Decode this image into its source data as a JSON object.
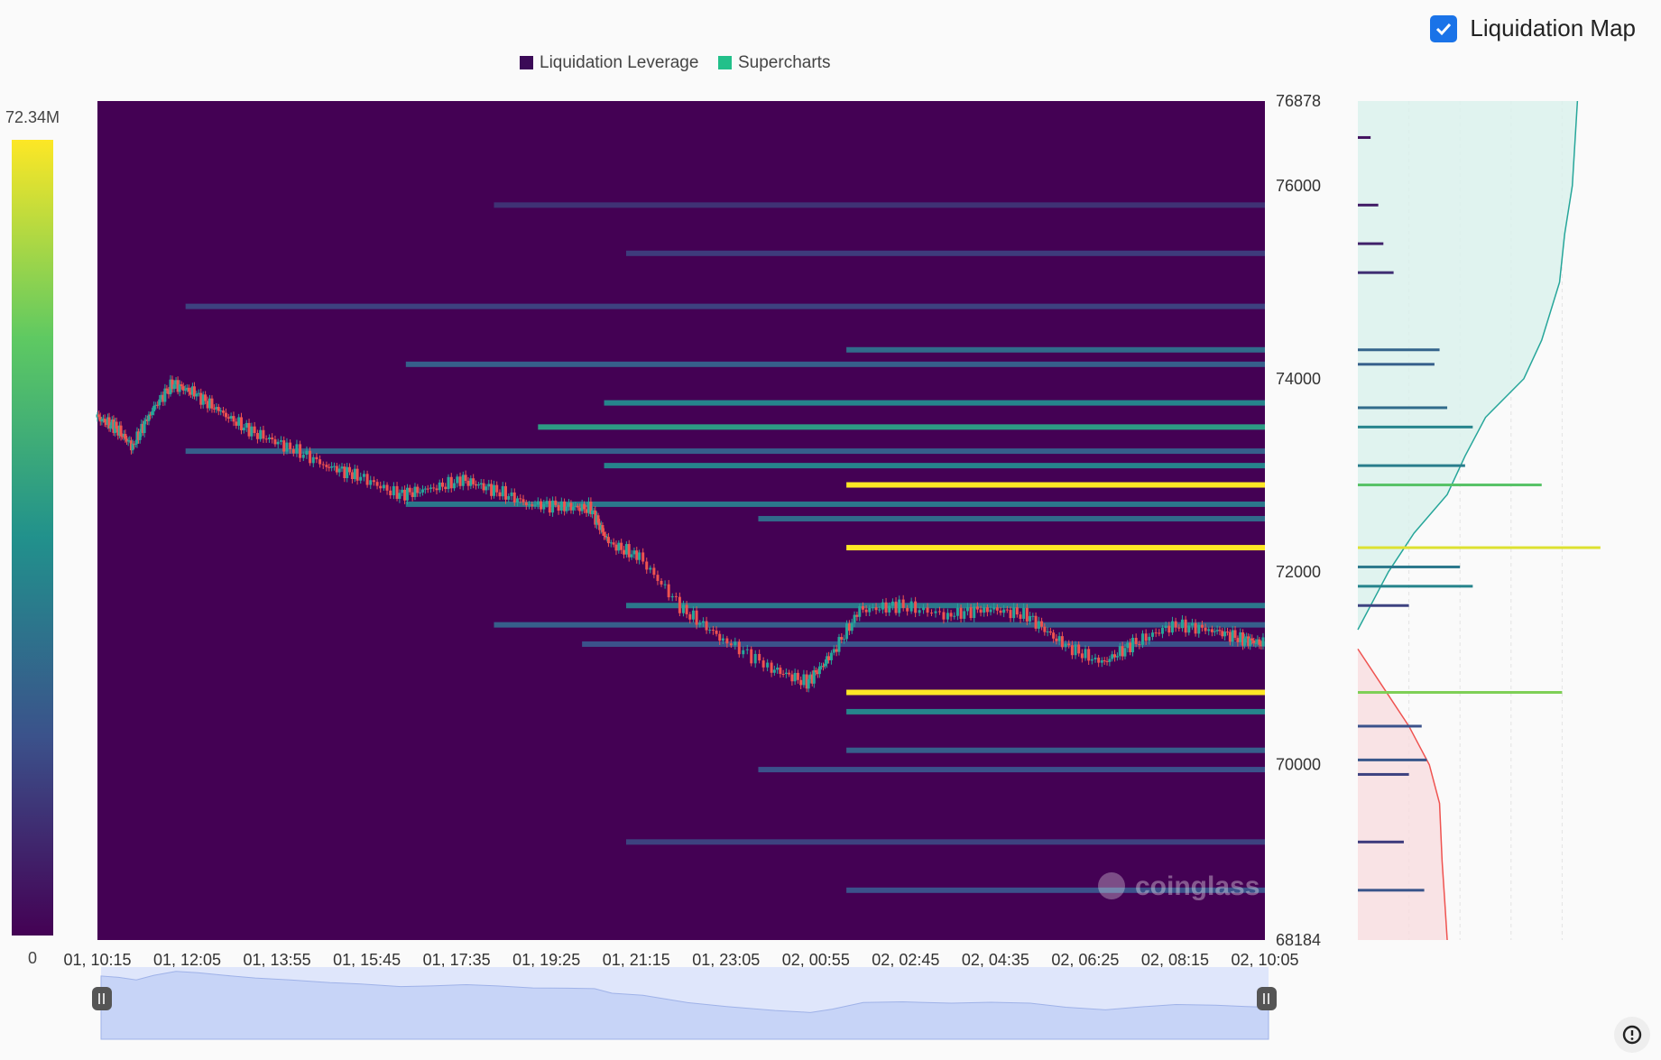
{
  "toggle": {
    "label": "Liquidation Map",
    "checked": true
  },
  "colors": {
    "bg": "#fafafa",
    "heat_low": "#440154",
    "heat_mid": "#21918c",
    "heat_high": "#fde725",
    "candle_up": "#26a69a",
    "candle_down": "#ef5350",
    "accent": "#1a73e8"
  },
  "watermark": "coinglass",
  "icons": {
    "settings": "settings-gear-icon",
    "checkbox": "check-icon"
  },
  "chart_data": {
    "type": "heatmap",
    "legend": [
      {
        "label": "Liquidation Leverage",
        "color": "#440154"
      },
      {
        "label": "Supercharts",
        "color": "#22c08a"
      }
    ],
    "colorbar": {
      "max_label": "72.34M",
      "min_label": "0",
      "max": 72.34,
      "min": 0,
      "unit": "M"
    },
    "y_axis": {
      "min": 68184,
      "max": 76878,
      "ticks": [
        "76878",
        "76000",
        "74000",
        "72000",
        "70000",
        "68184"
      ]
    },
    "x_axis": {
      "ticks": [
        "01, 10:15",
        "01, 12:05",
        "01, 13:55",
        "01, 15:45",
        "01, 17:35",
        "01, 19:25",
        "01, 21:15",
        "01, 23:05",
        "02, 00:55",
        "02, 02:45",
        "02, 04:35",
        "02, 06:25",
        "02, 08:15",
        "02, 10:05"
      ]
    },
    "price_path": [
      [
        0,
        73600
      ],
      [
        0.4,
        73500
      ],
      [
        0.8,
        73300
      ],
      [
        1.2,
        73650
      ],
      [
        1.7,
        73950
      ],
      [
        2.2,
        73850
      ],
      [
        2.8,
        73650
      ],
      [
        3.5,
        73450
      ],
      [
        4.3,
        73300
      ],
      [
        5.2,
        73100
      ],
      [
        5.9,
        73000
      ],
      [
        6.8,
        72800
      ],
      [
        7.5,
        72850
      ],
      [
        8.3,
        72950
      ],
      [
        9,
        72850
      ],
      [
        9.8,
        72700
      ],
      [
        10.6,
        72680
      ],
      [
        11.2,
        72650
      ],
      [
        11.6,
        72300
      ],
      [
        12.3,
        72150
      ],
      [
        13.3,
        71600
      ],
      [
        14.2,
        71300
      ],
      [
        15.3,
        71000
      ],
      [
        16.1,
        70850
      ],
      [
        16.6,
        71100
      ],
      [
        17.3,
        71600
      ],
      [
        18.2,
        71650
      ],
      [
        19.3,
        71550
      ],
      [
        20.2,
        71620
      ],
      [
        21.1,
        71550
      ],
      [
        21.9,
        71250
      ],
      [
        22.8,
        71050
      ],
      [
        23.5,
        71250
      ],
      [
        24.4,
        71450
      ],
      [
        25.3,
        71400
      ],
      [
        26,
        71300
      ],
      [
        26.5,
        71250
      ]
    ],
    "heat_bands": [
      {
        "price": 72900,
        "start": 17,
        "value": 1.0
      },
      {
        "price": 72250,
        "start": 17,
        "value": 1.0
      },
      {
        "price": 70750,
        "start": 17,
        "value": 1.0
      },
      {
        "price": 73500,
        "start": 10,
        "value": 0.55
      },
      {
        "price": 73750,
        "start": 11.5,
        "value": 0.45
      },
      {
        "price": 74300,
        "start": 17,
        "value": 0.35
      },
      {
        "price": 74150,
        "start": 7,
        "value": 0.3
      },
      {
        "price": 73100,
        "start": 11.5,
        "value": 0.45
      },
      {
        "price": 72700,
        "start": 7,
        "value": 0.4
      },
      {
        "price": 72550,
        "start": 15,
        "value": 0.35
      },
      {
        "price": 71650,
        "start": 12,
        "value": 0.4
      },
      {
        "price": 71450,
        "start": 9,
        "value": 0.3
      },
      {
        "price": 71250,
        "start": 11,
        "value": 0.25
      },
      {
        "price": 70550,
        "start": 17,
        "value": 0.45
      },
      {
        "price": 70150,
        "start": 17,
        "value": 0.3
      },
      {
        "price": 69950,
        "start": 15,
        "value": 0.25
      },
      {
        "price": 69200,
        "start": 12,
        "value": 0.2
      },
      {
        "price": 68700,
        "start": 17,
        "value": 0.25
      },
      {
        "price": 74750,
        "start": 2,
        "value": 0.2
      },
      {
        "price": 75300,
        "start": 12,
        "value": 0.18
      },
      {
        "price": 75800,
        "start": 9,
        "value": 0.15
      },
      {
        "price": 73250,
        "start": 2,
        "value": 0.3
      }
    ],
    "side_profile": {
      "levels": [
        {
          "price": 72900,
          "value": 0.72
        },
        {
          "price": 72250,
          "value": 0.95
        },
        {
          "price": 70750,
          "value": 0.8
        },
        {
          "price": 73100,
          "value": 0.42
        },
        {
          "price": 73500,
          "value": 0.45
        },
        {
          "price": 73700,
          "value": 0.35
        },
        {
          "price": 74300,
          "value": 0.32
        },
        {
          "price": 74150,
          "value": 0.3
        },
        {
          "price": 72050,
          "value": 0.4
        },
        {
          "price": 71850,
          "value": 0.45
        },
        {
          "price": 71650,
          "value": 0.2
        },
        {
          "price": 70400,
          "value": 0.25
        },
        {
          "price": 70050,
          "value": 0.27
        },
        {
          "price": 69900,
          "value": 0.2
        },
        {
          "price": 69200,
          "value": 0.18
        },
        {
          "price": 68700,
          "value": 0.26
        },
        {
          "price": 75100,
          "value": 0.14
        },
        {
          "price": 75400,
          "value": 0.1
        },
        {
          "price": 75800,
          "value": 0.08
        },
        {
          "price": 76500,
          "value": 0.05
        }
      ],
      "cumulative_short": [
        [
          71400,
          0.0
        ],
        [
          72000,
          0.12
        ],
        [
          72400,
          0.22
        ],
        [
          72800,
          0.35
        ],
        [
          73200,
          0.42
        ],
        [
          73600,
          0.5
        ],
        [
          74000,
          0.65
        ],
        [
          74400,
          0.72
        ],
        [
          75000,
          0.79
        ],
        [
          75500,
          0.81
        ],
        [
          76000,
          0.84
        ],
        [
          76878,
          0.86
        ]
      ],
      "cumulative_long": [
        [
          71200,
          0.0
        ],
        [
          70800,
          0.1
        ],
        [
          70400,
          0.2
        ],
        [
          70000,
          0.28
        ],
        [
          69600,
          0.32
        ],
        [
          69000,
          0.33
        ],
        [
          68600,
          0.34
        ],
        [
          68184,
          0.35
        ]
      ]
    }
  }
}
